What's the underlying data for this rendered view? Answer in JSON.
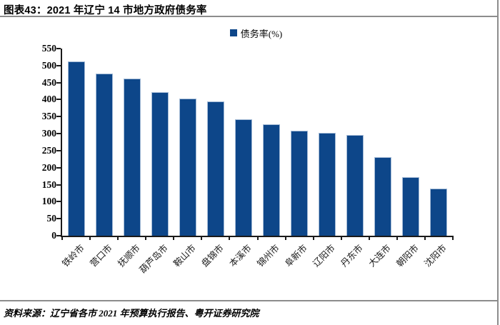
{
  "header": {
    "title": "图表43：2021 年辽宁 14 市地方政府债务率"
  },
  "legend": {
    "label": "债务率(%)",
    "marker_color": "#0d4689"
  },
  "chart_data": {
    "type": "bar",
    "title": "2021 年辽宁 14 市地方政府债务率",
    "categories": [
      "铁岭市",
      "营口市",
      "抚顺市",
      "葫芦岛市",
      "鞍山市",
      "盘锦市",
      "本溪市",
      "锦州市",
      "阜新市",
      "辽阳市",
      "丹东市",
      "大连市",
      "朝阳市",
      "沈阳市"
    ],
    "values": [
      512,
      476,
      462,
      421,
      403,
      395,
      343,
      327,
      308,
      303,
      297,
      230,
      173,
      139
    ],
    "series_name": "债务率(%)",
    "xlabel": "",
    "ylabel": "",
    "ylim": [
      0,
      550
    ],
    "ytick_step": 50,
    "yticks": [
      "0",
      "50",
      "100",
      "150",
      "200",
      "250",
      "300",
      "350",
      "400",
      "450",
      "500",
      "550"
    ],
    "grid": false,
    "legend_position": "top-center",
    "bar_color": "#0d4689",
    "bar_border_color": "#a3bad6",
    "axis_color": "#1a1a1a"
  },
  "footer": {
    "source": "资料来源：辽宁省各市 2021 年预算执行报告、粤开证券研究院"
  }
}
